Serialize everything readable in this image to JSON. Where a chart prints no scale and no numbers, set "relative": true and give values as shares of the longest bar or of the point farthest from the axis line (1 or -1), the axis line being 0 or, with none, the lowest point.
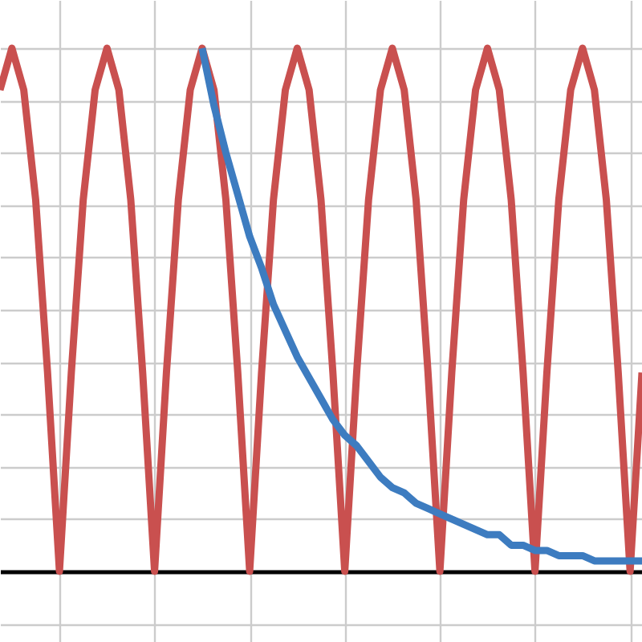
{
  "chart_data": {
    "type": "line",
    "relative": true,
    "grid": true,
    "legend": false,
    "marker": "none",
    "line_style": "solid",
    "categories": [
      null,
      null,
      null,
      null,
      null,
      null,
      null,
      null,
      null,
      null,
      null,
      null,
      null,
      null,
      null,
      null,
      null,
      null,
      null,
      null,
      null,
      null,
      null,
      null,
      null,
      null,
      null,
      null,
      null,
      null,
      null,
      null,
      null,
      null,
      null,
      null,
      null,
      null,
      null,
      null,
      null,
      null,
      null,
      null,
      null,
      null,
      null,
      null,
      null,
      null,
      null,
      null,
      null,
      null,
      null
    ],
    "series": [
      {
        "color": "#c9504f",
        "values": [
          0.92,
          1,
          0.92,
          0.71,
          0.38,
          0,
          0.38,
          0.71,
          0.92,
          1,
          0.92,
          0.71,
          0.38,
          0,
          0.38,
          0.71,
          0.92,
          1,
          0.92,
          0.71,
          0.38,
          0,
          0.38,
          0.71,
          0.92,
          1,
          0.92,
          0.71,
          0.38,
          0,
          0.38,
          0.71,
          0.92,
          1,
          0.92,
          0.71,
          0.38,
          0,
          0.38,
          0.71,
          0.92,
          1,
          0.92,
          0.71,
          0.38,
          0,
          0.38,
          0.71,
          0.92,
          1,
          0.92,
          0.71,
          0.38,
          0,
          0.38
        ]
      },
      {
        "color": "#3d7cc0",
        "values": [
          null,
          null,
          null,
          null,
          null,
          null,
          null,
          null,
          null,
          null,
          null,
          null,
          null,
          null,
          null,
          null,
          null,
          1,
          0.89,
          0.8,
          0.72,
          0.64,
          0.58,
          0.51,
          0.46,
          0.41,
          0.37,
          0.33,
          0.29,
          0.26,
          0.24,
          0.21,
          0.18,
          0.16,
          0.15,
          0.13,
          0.12,
          0.11,
          0.1,
          0.09,
          0.08,
          0.07,
          0.07,
          0.05,
          0.05,
          0.04,
          0.04,
          0.03,
          0.03,
          0.03,
          0.02,
          0.02,
          0.02,
          0.02,
          0.02
        ]
      }
    ]
  }
}
